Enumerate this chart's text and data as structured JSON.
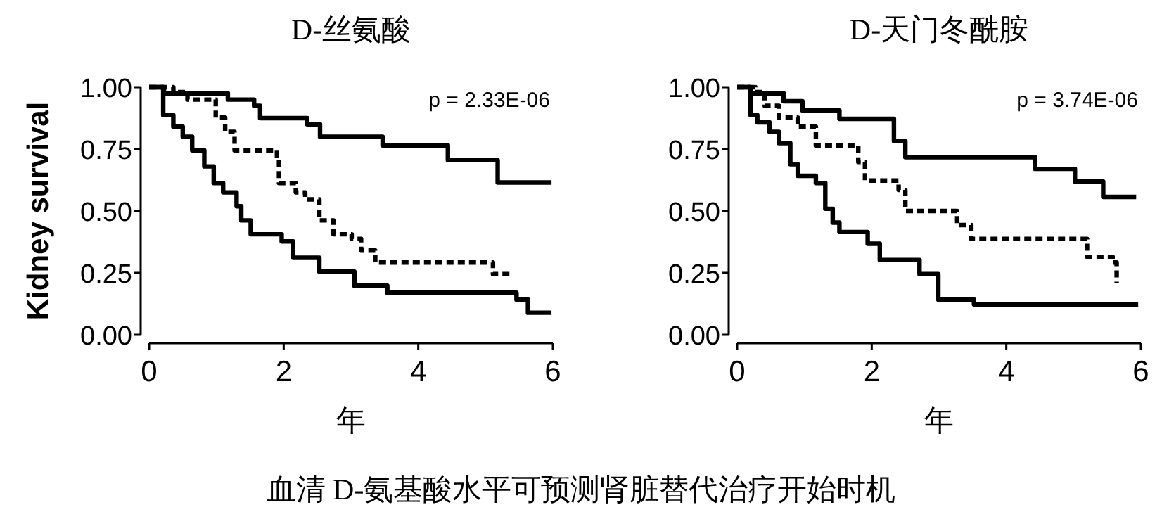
{
  "chart_data": [
    {
      "type": "step",
      "title": "D-丝氨酸",
      "xlabel": "年",
      "ylabel": "Kidney survival",
      "annotations": [
        "p = 2.33E-06",
        "血清 D-氨基酸水平可预测肾脏替代治疗开始时机"
      ],
      "xlim": [
        0,
        6
      ],
      "ylim": [
        0,
        1
      ],
      "xticks": [
        0,
        2,
        4,
        6
      ],
      "yticks": [
        {
          "value": 0,
          "label": "0.00"
        },
        {
          "value": 0.25,
          "label": "0.25"
        },
        {
          "value": 0.5,
          "label": "0.50"
        },
        {
          "value": 0.75,
          "label": "0.75"
        },
        {
          "value": 1,
          "label": "1.00"
        }
      ],
      "grid": false,
      "marker": "none",
      "series": [
        {
          "color": "#000000",
          "line_style": "solid",
          "x": [
            0,
            0.22,
            1.17,
            1.56,
            1.65,
            2.35,
            2.54,
            3.47,
            4.44,
            5.18,
            5.98
          ],
          "values": [
            1,
            0.975,
            0.95,
            0.925,
            0.875,
            0.85,
            0.8,
            0.765,
            0.705,
            0.615,
            0.615
          ]
        },
        {
          "color": "#000000",
          "line_style": "dashed",
          "x": [
            0,
            0.36,
            0.57,
            0.99,
            1.13,
            1.27,
            1.76,
            1.9,
            1.93,
            2.18,
            2.32,
            2.53,
            2.74,
            3.01,
            3.15,
            3.36,
            5.04,
            5.11,
            5.39
          ],
          "values": [
            1,
            0.98,
            0.95,
            0.877,
            0.82,
            0.745,
            0.745,
            0.71,
            0.613,
            0.575,
            0.547,
            0.462,
            0.406,
            0.387,
            0.34,
            0.292,
            0.292,
            0.245,
            0.245
          ]
        },
        {
          "color": "#000000",
          "line_style": "solid",
          "x": [
            0,
            0.21,
            0.36,
            0.5,
            0.64,
            0.82,
            0.96,
            1.1,
            1.3,
            1.37,
            1.51,
            1.97,
            2.14,
            2.53,
            3.05,
            3.54,
            5.46,
            5.63,
            5.98
          ],
          "values": [
            1,
            0.887,
            0.84,
            0.8,
            0.745,
            0.68,
            0.613,
            0.575,
            0.519,
            0.462,
            0.406,
            0.377,
            0.311,
            0.255,
            0.198,
            0.17,
            0.142,
            0.089,
            0.089
          ]
        }
      ]
    },
    {
      "type": "step",
      "title": "D-天门冬酰胺",
      "xlabel": "年",
      "annotations": [
        "p = 3.74E-06"
      ],
      "xlim": [
        0,
        6
      ],
      "ylim": [
        0,
        1
      ],
      "xticks": [
        0,
        2,
        4,
        6
      ],
      "yticks": [
        {
          "value": 0,
          "label": "0.00"
        },
        {
          "value": 0.25,
          "label": "0.25"
        },
        {
          "value": 0.5,
          "label": "0.50"
        },
        {
          "value": 0.75,
          "label": "0.75"
        },
        {
          "value": 1,
          "label": "1.00"
        }
      ],
      "grid": false,
      "marker": "none",
      "series": [
        {
          "color": "#000000",
          "line_style": "solid",
          "x": [
            0,
            0.2,
            0.69,
            0.97,
            1.52,
            2.33,
            2.5,
            4.43,
            5.02,
            5.44,
            5.93
          ],
          "values": [
            1,
            0.975,
            0.943,
            0.906,
            0.872,
            0.783,
            0.717,
            0.67,
            0.619,
            0.557,
            0.557
          ]
        },
        {
          "color": "#000000",
          "line_style": "dashed",
          "x": [
            0,
            0.27,
            0.41,
            0.62,
            0.9,
            1.17,
            1.59,
            1.8,
            1.9,
            2.4,
            2.5,
            3.06,
            3.27,
            3.48,
            5.13,
            5.2,
            5.58,
            5.64
          ],
          "values": [
            1,
            0.98,
            0.925,
            0.877,
            0.84,
            0.764,
            0.764,
            0.698,
            0.623,
            0.585,
            0.5,
            0.5,
            0.443,
            0.387,
            0.387,
            0.315,
            0.292,
            0.208
          ]
        },
        {
          "color": "#000000",
          "line_style": "solid",
          "x": [
            0,
            0.2,
            0.3,
            0.48,
            0.62,
            0.79,
            0.9,
            1.17,
            1.31,
            1.42,
            1.52,
            1.94,
            2.12,
            2.71,
            2.99,
            3.52,
            5.96
          ],
          "values": [
            1,
            0.887,
            0.858,
            0.82,
            0.774,
            0.689,
            0.642,
            0.613,
            0.509,
            0.453,
            0.415,
            0.368,
            0.302,
            0.245,
            0.142,
            0.123,
            0.123
          ]
        }
      ]
    }
  ]
}
